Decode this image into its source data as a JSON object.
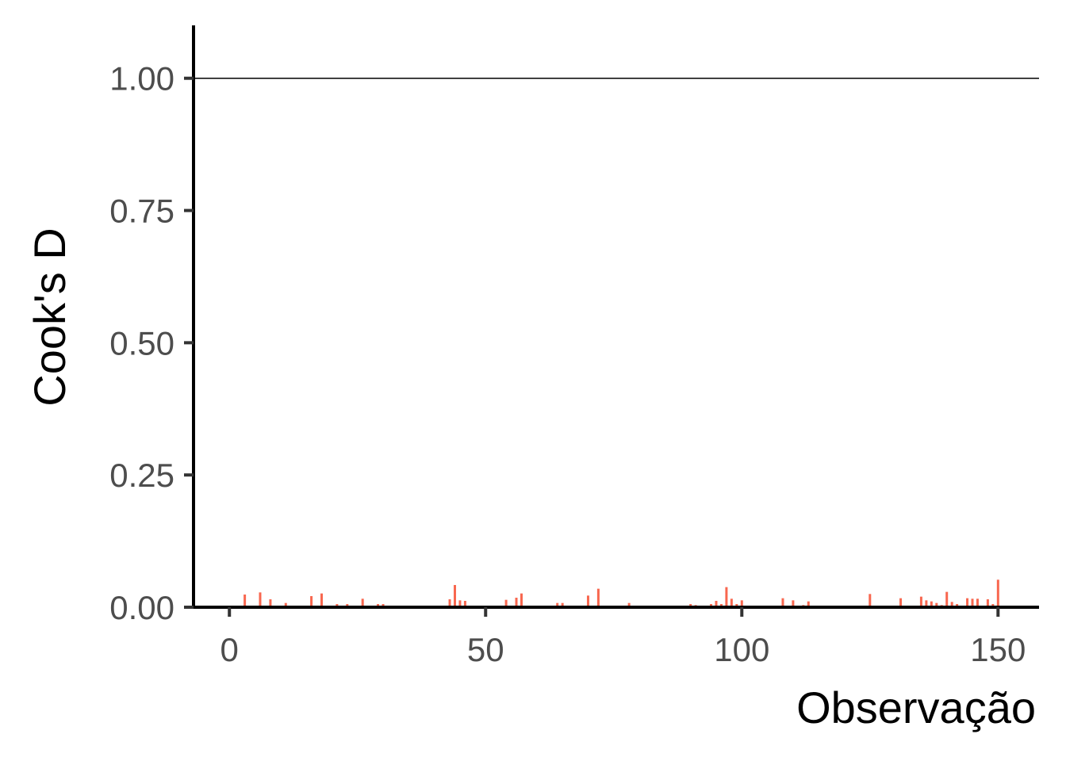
{
  "chart_data": {
    "type": "bar",
    "title": "",
    "xlabel": "Observação",
    "ylabel": "Cook's D",
    "xlim": [
      -7,
      158
    ],
    "ylim": [
      0,
      1.1
    ],
    "x_ticks": [
      0,
      50,
      100,
      150
    ],
    "x_tick_labels": [
      "0",
      "50",
      "100",
      "150"
    ],
    "y_ticks": [
      0,
      0.25,
      0.5,
      0.75,
      1.0
    ],
    "y_tick_labels": [
      "0.00",
      "0.25",
      "0.50",
      "0.75",
      "1.00"
    ],
    "reference_line": 1.0,
    "grid": false,
    "colors": {
      "bar": "#f8674f",
      "axis": "#000000",
      "tick_text": "#4d4d4d",
      "reference_line": "#000000"
    },
    "x": [
      1,
      2,
      3,
      4,
      5,
      6,
      7,
      8,
      9,
      10,
      11,
      12,
      13,
      14,
      15,
      16,
      17,
      18,
      19,
      20,
      21,
      22,
      23,
      24,
      25,
      26,
      27,
      28,
      29,
      30,
      31,
      32,
      33,
      34,
      35,
      36,
      37,
      38,
      39,
      40,
      41,
      42,
      43,
      44,
      45,
      46,
      47,
      48,
      49,
      50,
      51,
      52,
      53,
      54,
      55,
      56,
      57,
      58,
      59,
      60,
      61,
      62,
      63,
      64,
      65,
      66,
      67,
      68,
      69,
      70,
      71,
      72,
      73,
      74,
      75,
      76,
      77,
      78,
      79,
      80,
      81,
      82,
      83,
      84,
      85,
      86,
      87,
      88,
      89,
      90,
      91,
      92,
      93,
      94,
      95,
      96,
      97,
      98,
      99,
      100,
      101,
      102,
      103,
      104,
      105,
      106,
      107,
      108,
      109,
      110,
      111,
      112,
      113,
      114,
      115,
      116,
      117,
      118,
      119,
      120,
      121,
      122,
      123,
      124,
      125,
      126,
      127,
      128,
      129,
      130,
      131,
      132,
      133,
      134,
      135,
      136,
      137,
      138,
      139,
      140,
      141,
      142,
      143,
      144,
      145,
      146,
      147,
      148,
      149,
      150
    ],
    "values": [
      0.001,
      0.001,
      0.024,
      0.001,
      0.002,
      0.028,
      0.002,
      0.015,
      0.001,
      0.002,
      0.008,
      0.001,
      0.001,
      0.002,
      0.001,
      0.021,
      0.002,
      0.026,
      0.002,
      0.001,
      0.006,
      0.002,
      0.006,
      0.001,
      0.002,
      0.016,
      0.001,
      0.002,
      0.006,
      0.006,
      0.002,
      0.001,
      0.001,
      0.002,
      0.001,
      0.001,
      0.002,
      0.001,
      0.001,
      0.002,
      0.003,
      0.002,
      0.015,
      0.042,
      0.013,
      0.012,
      0.002,
      0.001,
      0.002,
      0.001,
      0.001,
      0.002,
      0.001,
      0.014,
      0.002,
      0.018,
      0.026,
      0.002,
      0.001,
      0.002,
      0.001,
      0.002,
      0.001,
      0.008,
      0.008,
      0.002,
      0.001,
      0.002,
      0.001,
      0.022,
      0.002,
      0.035,
      0.001,
      0.002,
      0.001,
      0.002,
      0.001,
      0.008,
      0.002,
      0.001,
      0.002,
      0.001,
      0.002,
      0.001,
      0.002,
      0.001,
      0.003,
      0.002,
      0.001,
      0.006,
      0.004,
      0.002,
      0.001,
      0.006,
      0.012,
      0.006,
      0.038,
      0.016,
      0.006,
      0.013,
      0.002,
      0.001,
      0.002,
      0.001,
      0.002,
      0.001,
      0.002,
      0.017,
      0.002,
      0.013,
      0.002,
      0.004,
      0.011,
      0.001,
      0.002,
      0.001,
      0.002,
      0.001,
      0.002,
      0.001,
      0.002,
      0.001,
      0.002,
      0.001,
      0.025,
      0.002,
      0.001,
      0.002,
      0.001,
      0.002,
      0.017,
      0.002,
      0.001,
      0.002,
      0.02,
      0.013,
      0.011,
      0.008,
      0.004,
      0.029,
      0.01,
      0.006,
      0.002,
      0.017,
      0.016,
      0.016,
      0.002,
      0.015,
      0.006,
      0.052
    ]
  }
}
